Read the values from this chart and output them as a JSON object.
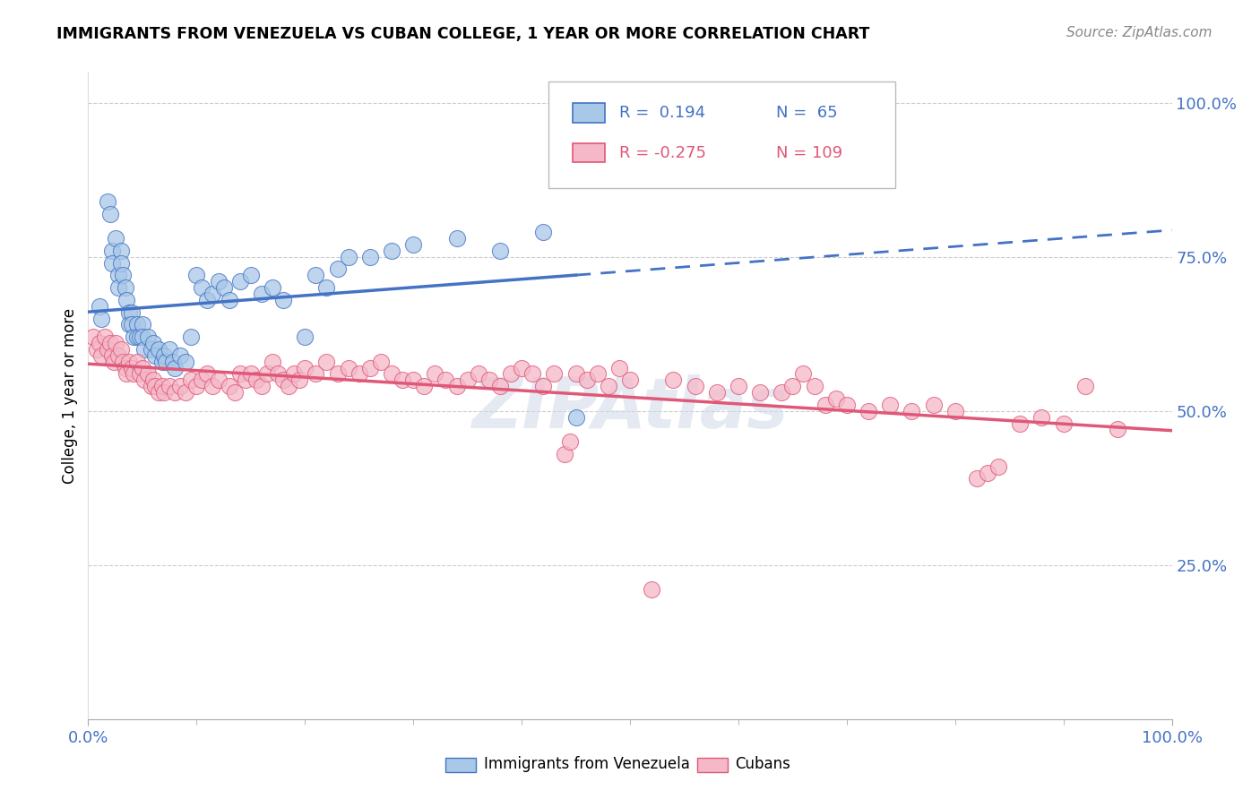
{
  "title": "IMMIGRANTS FROM VENEZUELA VS CUBAN COLLEGE, 1 YEAR OR MORE CORRELATION CHART",
  "source_text": "Source: ZipAtlas.com",
  "ylabel": "College, 1 year or more",
  "xlim": [
    0,
    1
  ],
  "ylim": [
    0,
    1.05
  ],
  "ytick_labels": [
    "25.0%",
    "50.0%",
    "75.0%",
    "100.0%"
  ],
  "ytick_positions": [
    0.25,
    0.5,
    0.75,
    1.0
  ],
  "color_venezuela": "#A8C8E8",
  "color_cuba": "#F4B8C8",
  "line_color_venezuela": "#4472C4",
  "line_color_cuba": "#E05878",
  "watermark": "ZIPAtlas",
  "venezuela_points": [
    [
      0.01,
      0.67
    ],
    [
      0.012,
      0.65
    ],
    [
      0.018,
      0.84
    ],
    [
      0.02,
      0.82
    ],
    [
      0.022,
      0.76
    ],
    [
      0.022,
      0.74
    ],
    [
      0.025,
      0.78
    ],
    [
      0.028,
      0.72
    ],
    [
      0.028,
      0.7
    ],
    [
      0.03,
      0.76
    ],
    [
      0.03,
      0.74
    ],
    [
      0.032,
      0.72
    ],
    [
      0.034,
      0.7
    ],
    [
      0.035,
      0.68
    ],
    [
      0.038,
      0.66
    ],
    [
      0.038,
      0.64
    ],
    [
      0.04,
      0.66
    ],
    [
      0.04,
      0.64
    ],
    [
      0.042,
      0.62
    ],
    [
      0.045,
      0.64
    ],
    [
      0.045,
      0.62
    ],
    [
      0.048,
      0.62
    ],
    [
      0.05,
      0.64
    ],
    [
      0.05,
      0.62
    ],
    [
      0.052,
      0.6
    ],
    [
      0.055,
      0.62
    ],
    [
      0.058,
      0.6
    ],
    [
      0.06,
      0.61
    ],
    [
      0.062,
      0.59
    ],
    [
      0.065,
      0.6
    ],
    [
      0.068,
      0.58
    ],
    [
      0.07,
      0.59
    ],
    [
      0.072,
      0.58
    ],
    [
      0.075,
      0.6
    ],
    [
      0.078,
      0.58
    ],
    [
      0.08,
      0.57
    ],
    [
      0.085,
      0.59
    ],
    [
      0.09,
      0.58
    ],
    [
      0.095,
      0.62
    ],
    [
      0.1,
      0.72
    ],
    [
      0.105,
      0.7
    ],
    [
      0.11,
      0.68
    ],
    [
      0.115,
      0.69
    ],
    [
      0.12,
      0.71
    ],
    [
      0.125,
      0.7
    ],
    [
      0.13,
      0.68
    ],
    [
      0.14,
      0.71
    ],
    [
      0.15,
      0.72
    ],
    [
      0.16,
      0.69
    ],
    [
      0.17,
      0.7
    ],
    [
      0.18,
      0.68
    ],
    [
      0.2,
      0.62
    ],
    [
      0.21,
      0.72
    ],
    [
      0.22,
      0.7
    ],
    [
      0.23,
      0.73
    ],
    [
      0.24,
      0.75
    ],
    [
      0.26,
      0.75
    ],
    [
      0.28,
      0.76
    ],
    [
      0.3,
      0.77
    ],
    [
      0.34,
      0.78
    ],
    [
      0.38,
      0.76
    ],
    [
      0.42,
      0.79
    ],
    [
      0.45,
      0.49
    ]
  ],
  "cuba_points": [
    [
      0.005,
      0.62
    ],
    [
      0.008,
      0.6
    ],
    [
      0.01,
      0.61
    ],
    [
      0.012,
      0.59
    ],
    [
      0.015,
      0.62
    ],
    [
      0.018,
      0.6
    ],
    [
      0.02,
      0.61
    ],
    [
      0.022,
      0.59
    ],
    [
      0.024,
      0.58
    ],
    [
      0.025,
      0.61
    ],
    [
      0.028,
      0.59
    ],
    [
      0.03,
      0.6
    ],
    [
      0.032,
      0.58
    ],
    [
      0.034,
      0.57
    ],
    [
      0.035,
      0.56
    ],
    [
      0.038,
      0.58
    ],
    [
      0.04,
      0.57
    ],
    [
      0.042,
      0.56
    ],
    [
      0.045,
      0.58
    ],
    [
      0.048,
      0.56
    ],
    [
      0.05,
      0.57
    ],
    [
      0.052,
      0.55
    ],
    [
      0.055,
      0.56
    ],
    [
      0.058,
      0.54
    ],
    [
      0.06,
      0.55
    ],
    [
      0.062,
      0.54
    ],
    [
      0.065,
      0.53
    ],
    [
      0.068,
      0.54
    ],
    [
      0.07,
      0.53
    ],
    [
      0.075,
      0.54
    ],
    [
      0.08,
      0.53
    ],
    [
      0.085,
      0.54
    ],
    [
      0.09,
      0.53
    ],
    [
      0.095,
      0.55
    ],
    [
      0.1,
      0.54
    ],
    [
      0.105,
      0.55
    ],
    [
      0.11,
      0.56
    ],
    [
      0.115,
      0.54
    ],
    [
      0.12,
      0.55
    ],
    [
      0.13,
      0.54
    ],
    [
      0.135,
      0.53
    ],
    [
      0.14,
      0.56
    ],
    [
      0.145,
      0.55
    ],
    [
      0.15,
      0.56
    ],
    [
      0.155,
      0.55
    ],
    [
      0.16,
      0.54
    ],
    [
      0.165,
      0.56
    ],
    [
      0.17,
      0.58
    ],
    [
      0.175,
      0.56
    ],
    [
      0.18,
      0.55
    ],
    [
      0.185,
      0.54
    ],
    [
      0.19,
      0.56
    ],
    [
      0.195,
      0.55
    ],
    [
      0.2,
      0.57
    ],
    [
      0.21,
      0.56
    ],
    [
      0.22,
      0.58
    ],
    [
      0.23,
      0.56
    ],
    [
      0.24,
      0.57
    ],
    [
      0.25,
      0.56
    ],
    [
      0.26,
      0.57
    ],
    [
      0.27,
      0.58
    ],
    [
      0.28,
      0.56
    ],
    [
      0.29,
      0.55
    ],
    [
      0.3,
      0.55
    ],
    [
      0.31,
      0.54
    ],
    [
      0.32,
      0.56
    ],
    [
      0.33,
      0.55
    ],
    [
      0.34,
      0.54
    ],
    [
      0.35,
      0.55
    ],
    [
      0.36,
      0.56
    ],
    [
      0.37,
      0.55
    ],
    [
      0.38,
      0.54
    ],
    [
      0.39,
      0.56
    ],
    [
      0.4,
      0.57
    ],
    [
      0.41,
      0.56
    ],
    [
      0.42,
      0.54
    ],
    [
      0.43,
      0.56
    ],
    [
      0.44,
      0.43
    ],
    [
      0.445,
      0.45
    ],
    [
      0.45,
      0.56
    ],
    [
      0.46,
      0.55
    ],
    [
      0.47,
      0.56
    ],
    [
      0.48,
      0.54
    ],
    [
      0.49,
      0.57
    ],
    [
      0.5,
      0.55
    ],
    [
      0.52,
      0.21
    ],
    [
      0.54,
      0.55
    ],
    [
      0.56,
      0.54
    ],
    [
      0.58,
      0.53
    ],
    [
      0.6,
      0.54
    ],
    [
      0.62,
      0.53
    ],
    [
      0.64,
      0.53
    ],
    [
      0.65,
      0.54
    ],
    [
      0.66,
      0.56
    ],
    [
      0.67,
      0.54
    ],
    [
      0.68,
      0.51
    ],
    [
      0.69,
      0.52
    ],
    [
      0.7,
      0.51
    ],
    [
      0.72,
      0.5
    ],
    [
      0.74,
      0.51
    ],
    [
      0.76,
      0.5
    ],
    [
      0.78,
      0.51
    ],
    [
      0.8,
      0.5
    ],
    [
      0.82,
      0.39
    ],
    [
      0.83,
      0.4
    ],
    [
      0.84,
      0.41
    ],
    [
      0.86,
      0.48
    ],
    [
      0.88,
      0.49
    ],
    [
      0.9,
      0.48
    ],
    [
      0.92,
      0.54
    ],
    [
      0.95,
      0.47
    ]
  ]
}
